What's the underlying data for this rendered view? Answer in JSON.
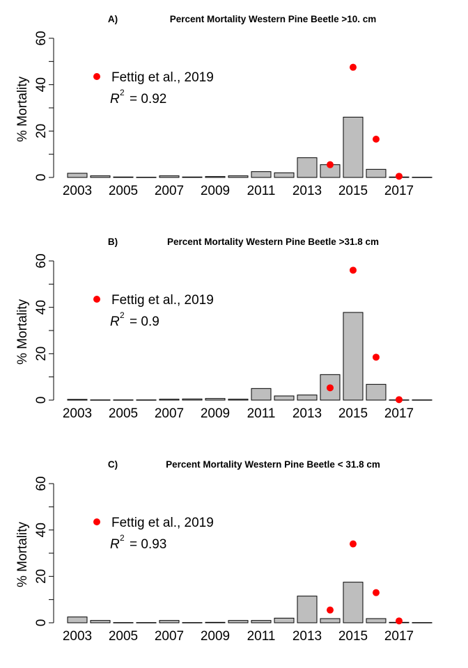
{
  "colors": {
    "bar_fill": "#bebebe",
    "bar_stroke": "#000000",
    "point": "#ff0000",
    "axis": "#000000"
  },
  "chart_data": [
    {
      "type": "bar",
      "title_prefix": "A)",
      "title": "Percent Mortality Western Pine Beetle >10. cm",
      "ylabel": "% Mortality",
      "xlabel": "",
      "ylim": [
        0,
        60
      ],
      "yticks": [
        0,
        20,
        40,
        60
      ],
      "xtick_labels": [
        "2003",
        "2005",
        "2007",
        "2009",
        "2011",
        "2013",
        "2015",
        "2017"
      ],
      "categories": [
        2003,
        2004,
        2005,
        2006,
        2007,
        2008,
        2009,
        2010,
        2011,
        2012,
        2013,
        2014,
        2015,
        2016,
        2017,
        2018
      ],
      "values": [
        1.8,
        0.7,
        0.2,
        0.1,
        0.7,
        0.2,
        0.4,
        0.7,
        2.5,
        2.0,
        8.5,
        5.5,
        26.0,
        3.5,
        0.2,
        0.1
      ],
      "points_label": "Fettig et al., 2019",
      "points": [
        {
          "x": 2014,
          "y": 5.5
        },
        {
          "x": 2015,
          "y": 47.5
        },
        {
          "x": 2016,
          "y": 16.5
        },
        {
          "x": 2017,
          "y": 0.5
        }
      ],
      "r2_label": "R",
      "r2_exp": "2",
      "r2_eq": "= 0.92",
      "grid": false,
      "legend_position": "top-left"
    },
    {
      "type": "bar",
      "title_prefix": "B)",
      "title": "Percent Mortality Western Pine Beetle >31.8 cm",
      "ylabel": "% Mortality",
      "xlabel": "",
      "ylim": [
        0,
        60
      ],
      "yticks": [
        0,
        20,
        40,
        60
      ],
      "xtick_labels": [
        "2003",
        "2005",
        "2007",
        "2009",
        "2011",
        "2013",
        "2015",
        "2017"
      ],
      "categories": [
        2003,
        2004,
        2005,
        2006,
        2007,
        2008,
        2009,
        2010,
        2011,
        2012,
        2013,
        2014,
        2015,
        2016,
        2017,
        2018
      ],
      "values": [
        0.3,
        0.1,
        0.1,
        0.1,
        0.4,
        0.5,
        0.7,
        0.4,
        5.0,
        1.8,
        2.2,
        11.0,
        37.8,
        6.8,
        0.1,
        0.1
      ],
      "points_label": "Fettig et al., 2019",
      "points": [
        {
          "x": 2014,
          "y": 5.3
        },
        {
          "x": 2015,
          "y": 56.0
        },
        {
          "x": 2016,
          "y": 18.5
        },
        {
          "x": 2017,
          "y": 0.2
        }
      ],
      "r2_label": "R",
      "r2_exp": "2",
      "r2_eq": "= 0.9",
      "grid": false,
      "legend_position": "top-left"
    },
    {
      "type": "bar",
      "title_prefix": "C)",
      "title": "Percent Mortality Western Pine Beetle < 31.8 cm",
      "ylabel": "% Mortality",
      "xlabel": "",
      "ylim": [
        0,
        60
      ],
      "yticks": [
        0,
        20,
        40,
        60
      ],
      "xtick_labels": [
        "2003",
        "2005",
        "2007",
        "2009",
        "2011",
        "2013",
        "2015",
        "2017"
      ],
      "categories": [
        2003,
        2004,
        2005,
        2006,
        2007,
        2008,
        2009,
        2010,
        2011,
        2012,
        2013,
        2014,
        2015,
        2016,
        2017,
        2018
      ],
      "values": [
        2.5,
        1.0,
        0.1,
        0.1,
        1.0,
        0.1,
        0.2,
        1.0,
        1.0,
        2.0,
        11.5,
        1.8,
        17.5,
        1.8,
        0.2,
        0.1
      ],
      "points_label": "Fettig et al., 2019",
      "points": [
        {
          "x": 2014,
          "y": 5.5
        },
        {
          "x": 2015,
          "y": 34.0
        },
        {
          "x": 2016,
          "y": 13.0
        },
        {
          "x": 2017,
          "y": 0.8
        }
      ],
      "r2_label": "R",
      "r2_exp": "2",
      "r2_eq": "= 0.93",
      "grid": false,
      "legend_position": "top-left"
    }
  ]
}
